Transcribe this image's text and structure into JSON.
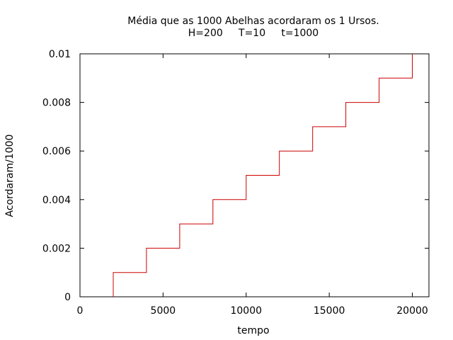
{
  "chart_data": {
    "type": "line",
    "step": true,
    "title_line1": "Média que as 1000 Abelhas acordaram os 1 Ursos.",
    "title_line2": "H=200     T=10     t=1000",
    "xlabel": "tempo",
    "ylabel": "Acordaram/1000",
    "xlim": [
      0,
      21000
    ],
    "ylim": [
      0,
      0.01
    ],
    "x_ticks": [
      0,
      5000,
      10000,
      15000,
      20000
    ],
    "x_tick_labels": [
      "0",
      "5000",
      "10000",
      "15000",
      "20000"
    ],
    "y_ticks": [
      0,
      0.002,
      0.004,
      0.006,
      0.008,
      0.01
    ],
    "y_tick_labels": [
      "0",
      "0.002",
      "0.004",
      "0.006",
      "0.008",
      "0.01"
    ],
    "grid": false,
    "legend": "none",
    "line_color": "#cc0000",
    "series": [
      {
        "x": [
          2000,
          2000,
          4000,
          4000,
          6000,
          6000,
          8000,
          8000,
          10000,
          10000,
          12000,
          12000,
          14000,
          14000,
          16000,
          16000,
          18000,
          18000,
          20000,
          20000
        ],
        "y": [
          0,
          0.001,
          0.001,
          0.002,
          0.002,
          0.003,
          0.003,
          0.004,
          0.004,
          0.005,
          0.005,
          0.006,
          0.006,
          0.007,
          0.007,
          0.008,
          0.008,
          0.009,
          0.009,
          0.01
        ]
      }
    ]
  }
}
